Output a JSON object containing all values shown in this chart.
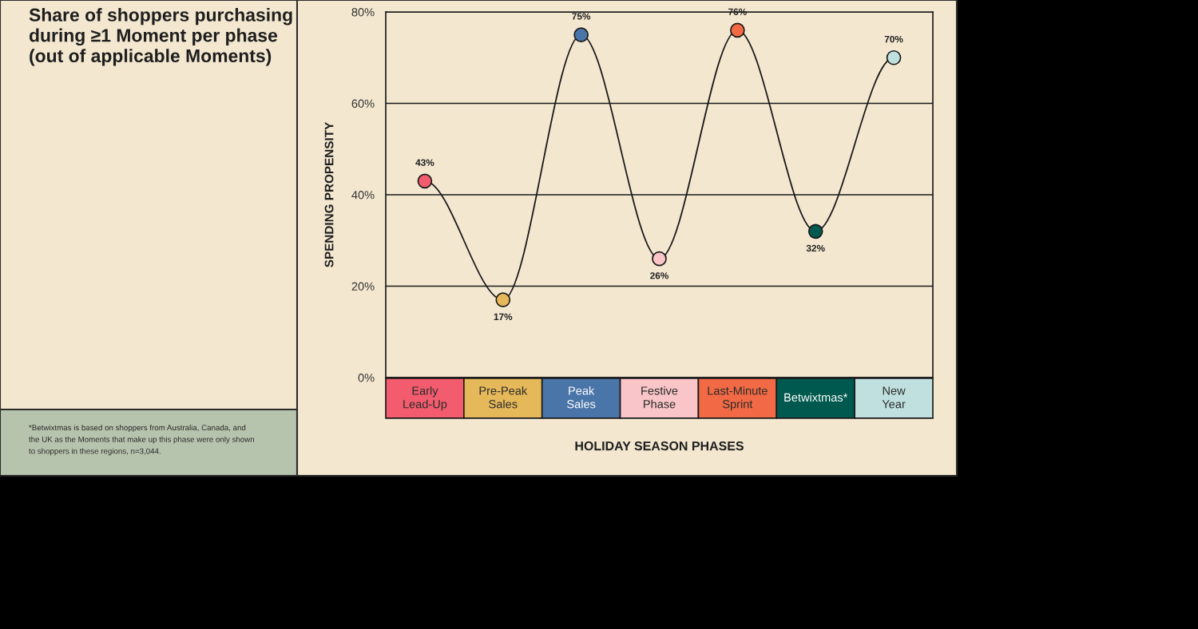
{
  "chart_data": {
    "type": "line",
    "title": "Share of shoppers purchasing\nduring ≥1 Moment per phase\n(out of applicable Moments)",
    "xlabel": "HOLIDAY SEASON PHASES",
    "ylabel": "SPENDING PROPENSITY",
    "categories": [
      "Early\nLead-Up",
      "Pre-Peak\nSales",
      "Peak\nSales",
      "Festive\nPhase",
      "Last-Minute\nSprint",
      "Betwixtmas*",
      "New\nYear"
    ],
    "series": [
      {
        "color": "#1a1a1a",
        "colors": [
          "#f25c6e",
          "#e5b85a",
          "#4a75a8",
          "#f9c5c8",
          "#f26a45",
          "#00594f",
          "#bfe0df"
        ],
        "values": [
          43,
          17,
          75,
          26,
          76,
          32,
          70
        ],
        "value_labels": [
          "43%",
          "17%",
          "75%",
          "26%",
          "76%",
          "32%",
          "70%"
        ]
      }
    ],
    "ylim": [
      0,
      80
    ],
    "yticks": [
      {
        "value": 0,
        "label": "0%"
      },
      {
        "value": 20,
        "label": "20%"
      },
      {
        "value": 40,
        "label": "40%"
      },
      {
        "value": 60,
        "label": "60%"
      },
      {
        "value": 80,
        "label": "80%"
      }
    ],
    "grid": "y",
    "marker": "circle",
    "line_style": "solid",
    "annotations": [
      "*Betwixtmas is based on shoppers from Australia, Canada, and\nthe UK as the Moments that make up this phase were only shown\nto shoppers in these regions, n=3,044."
    ]
  }
}
